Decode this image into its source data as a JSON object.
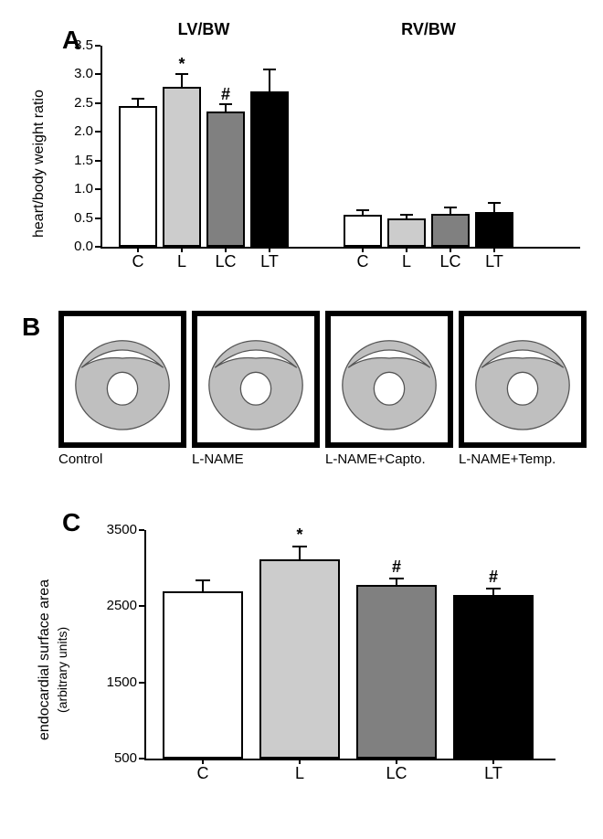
{
  "panelA": {
    "label": "A",
    "type": "bar",
    "ylabel": "heart/body weight ratio",
    "ylim": [
      0,
      3.5
    ],
    "ytick_step": 0.5,
    "yticks": [
      0.0,
      0.5,
      1.0,
      1.5,
      2.0,
      2.5,
      3.0,
      3.5
    ],
    "tick_fontsize": 15,
    "label_fontsize": 16,
    "group_title_fontsize": 18,
    "bar_border_color": "#000000",
    "background_color": "#ffffff",
    "groups": [
      {
        "title": "LV/BW",
        "categories": [
          "C",
          "L",
          "LC",
          "LT"
        ],
        "values": [
          2.45,
          2.78,
          2.35,
          2.7
        ],
        "errors": [
          0.15,
          0.25,
          0.15,
          0.4
        ],
        "colors": [
          "#ffffff",
          "#cccccc",
          "#808080",
          "#000000"
        ],
        "sig": [
          "",
          "*",
          "#",
          ""
        ]
      },
      {
        "title": "RV/BW",
        "categories": [
          "C",
          "L",
          "LC",
          "LT"
        ],
        "values": [
          0.55,
          0.5,
          0.58,
          0.6
        ],
        "errors": [
          0.1,
          0.07,
          0.12,
          0.18
        ],
        "colors": [
          "#ffffff",
          "#cccccc",
          "#808080",
          "#000000"
        ],
        "sig": [
          "",
          "",
          "",
          ""
        ]
      }
    ]
  },
  "panelB": {
    "label": "B",
    "items": [
      {
        "caption": "Control"
      },
      {
        "caption": "L-NAME"
      },
      {
        "caption": "L-NAME+Capto."
      },
      {
        "caption": "L-NAME+Temp."
      }
    ],
    "border_color": "#000000",
    "tissue_fill": "#bfbfbf",
    "lumen_fill": "#ffffff"
  },
  "panelC": {
    "label": "C",
    "type": "bar",
    "ylabel": "endocardial surface area",
    "ylabel_sub": "(arbitrary units)",
    "ylim": [
      500,
      3500
    ],
    "ytick_step": 1000,
    "yticks": [
      500,
      1500,
      2500,
      3500
    ],
    "tick_fontsize": 15,
    "label_fontsize": 16,
    "categories": [
      "C",
      "L",
      "LC",
      "LT"
    ],
    "values": [
      2700,
      3120,
      2780,
      2650
    ],
    "errors": [
      150,
      180,
      100,
      90
    ],
    "colors": [
      "#ffffff",
      "#cccccc",
      "#808080",
      "#000000"
    ],
    "sig": [
      "",
      "*",
      "#",
      "#"
    ],
    "bar_border_color": "#000000",
    "background_color": "#ffffff"
  }
}
